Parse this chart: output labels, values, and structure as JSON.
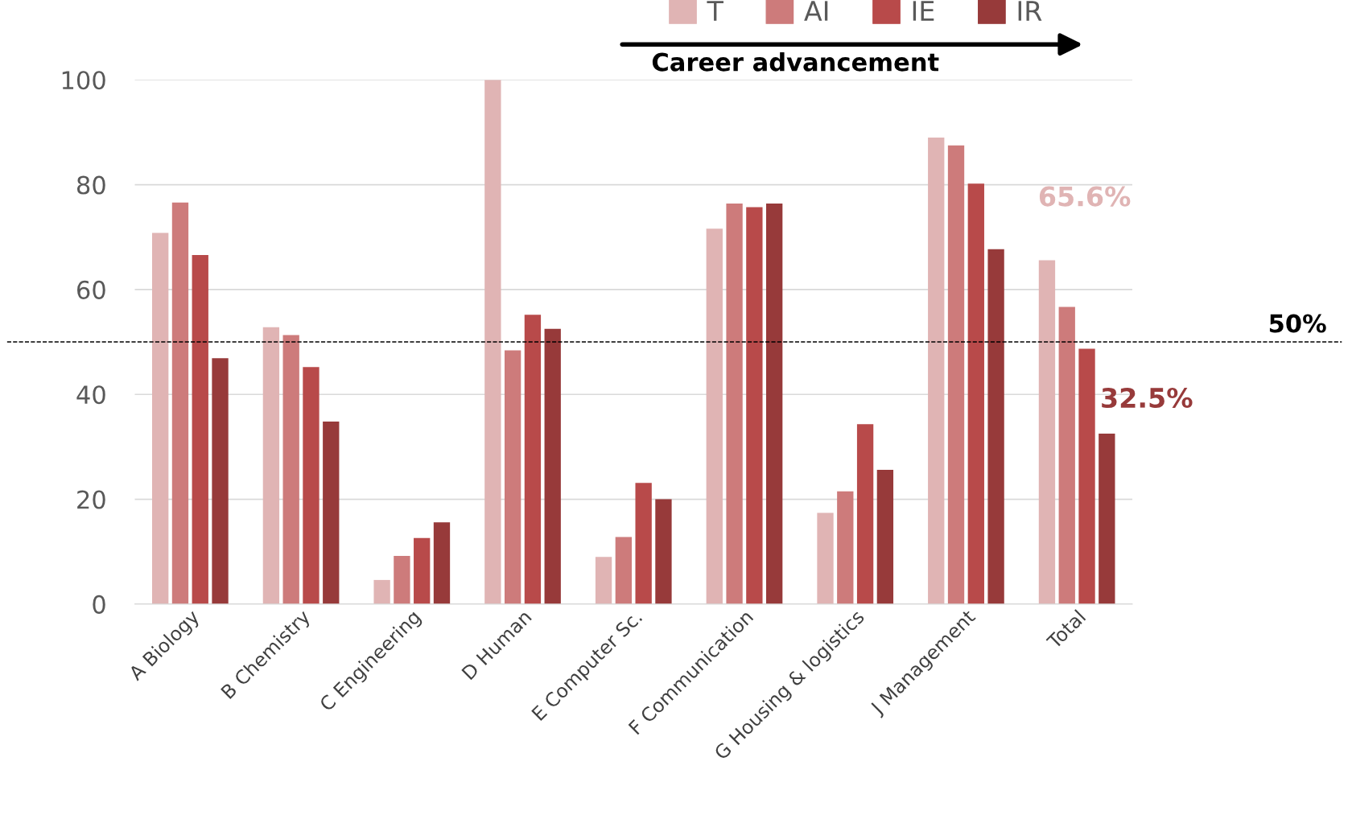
{
  "chart_data": {
    "type": "bar",
    "categories": [
      "A Biology",
      "B Chemistry",
      "C Engineering",
      "D Human",
      "E Computer Sc.",
      "F Communication",
      "G Housing & logistics",
      "J Management",
      "Total"
    ],
    "series": [
      {
        "name": "T",
        "color": "#e0b4b4",
        "values": [
          70.8,
          52.8,
          4.6,
          100,
          9.0,
          71.6,
          17.4,
          89.0,
          65.6
        ]
      },
      {
        "name": "AI",
        "color": "#cd7b7b",
        "values": [
          76.6,
          51.3,
          9.2,
          48.4,
          12.8,
          76.4,
          21.5,
          87.5,
          56.7
        ]
      },
      {
        "name": "IE",
        "color": "#b84a4a",
        "values": [
          66.6,
          45.2,
          12.6,
          55.2,
          23.1,
          75.7,
          34.3,
          80.2,
          48.7
        ]
      },
      {
        "name": "IR",
        "color": "#973a3a",
        "values": [
          46.9,
          34.8,
          15.6,
          52.5,
          20.0,
          76.4,
          25.6,
          67.7,
          32.5
        ]
      }
    ],
    "ylim": [
      0,
      100
    ],
    "yticks": [
      0,
      20,
      40,
      60,
      80,
      100
    ],
    "grid": "y",
    "legend": "top",
    "ref_lines": [
      {
        "axis": "y",
        "value": 50,
        "label": "50%",
        "color": "#000000",
        "line_style": "dashed"
      }
    ],
    "annotations": [
      "65.6%",
      "32.5%",
      "Career advancement"
    ]
  }
}
